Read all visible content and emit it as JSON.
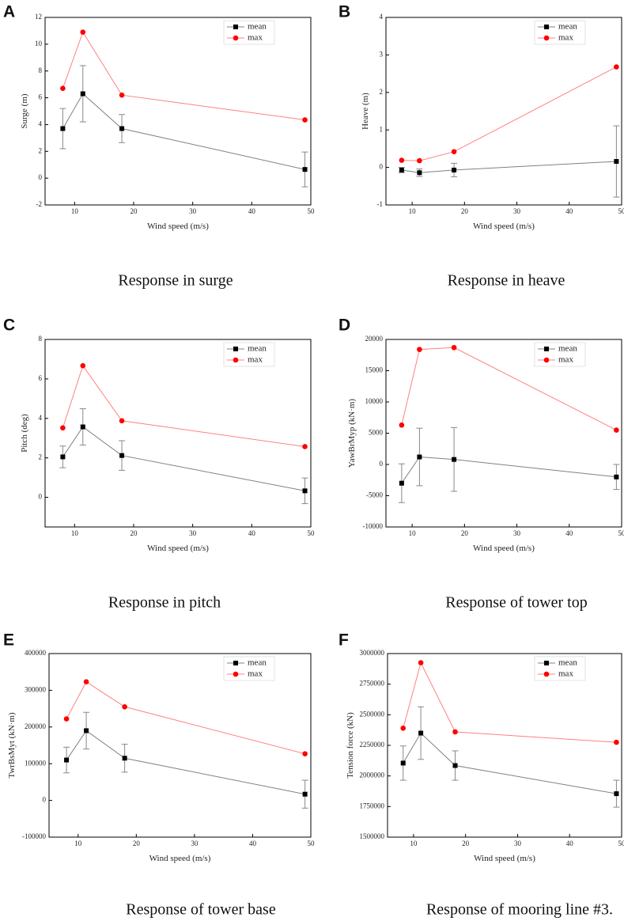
{
  "colors": {
    "mean": "#000000",
    "max": "#ff0000",
    "mean_line": "#808080",
    "max_line": "#ff8080",
    "errorbar": "#888888"
  },
  "chart_data": [
    {
      "panel": "A",
      "type": "line",
      "caption": "Response in surge",
      "xlabel": "Wind speed (m/s)",
      "ylabel": "Surge (m)",
      "xlim": [
        5,
        50
      ],
      "ylim": [
        -2,
        12
      ],
      "xticks": [
        "10",
        "20",
        "30",
        "40",
        "50"
      ],
      "yticks": [
        "-2",
        "0",
        "2",
        "4",
        "6",
        "8",
        "10",
        "12"
      ],
      "legend": {
        "position": "top-right",
        "entries": [
          "mean",
          "max"
        ]
      },
      "x": [
        8,
        11.4,
        18,
        49
      ],
      "series": [
        {
          "name": "mean",
          "values": [
            3.7,
            6.3,
            3.7,
            0.65
          ],
          "err": [
            1.5,
            2.1,
            1.05,
            1.3
          ]
        },
        {
          "name": "max",
          "values": [
            6.7,
            10.9,
            6.2,
            4.35
          ]
        }
      ]
    },
    {
      "panel": "B",
      "type": "line",
      "caption": "Response in heave",
      "xlabel": "Wind speed (m/s)",
      "ylabel": "Heave (m)",
      "xlim": [
        5,
        50
      ],
      "ylim": [
        -1,
        4
      ],
      "xticks": [
        "10",
        "20",
        "30",
        "40",
        "50"
      ],
      "yticks": [
        "-1",
        "0",
        "1",
        "2",
        "3",
        "4"
      ],
      "legend": {
        "position": "top-right",
        "entries": [
          "mean",
          "max"
        ]
      },
      "x": [
        8,
        11.4,
        18,
        49
      ],
      "series": [
        {
          "name": "mean",
          "values": [
            -0.07,
            -0.14,
            -0.07,
            0.16
          ],
          "err": [
            0.07,
            0.1,
            0.18,
            0.95
          ]
        },
        {
          "name": "max",
          "values": [
            0.19,
            0.18,
            0.42,
            2.68
          ]
        }
      ]
    },
    {
      "panel": "C",
      "type": "line",
      "caption": "Response in pitch",
      "xlabel": "Wind speed (m/s)",
      "ylabel": "Pitch (deg)",
      "xlim": [
        5,
        50
      ],
      "ylim": [
        -1.5,
        8
      ],
      "xticks": [
        "10",
        "20",
        "30",
        "40",
        "50"
      ],
      "yticks": [
        "0",
        "2",
        "4",
        "6",
        "8"
      ],
      "legend": {
        "position": "top-right",
        "entries": [
          "mean",
          "max"
        ]
      },
      "x": [
        8,
        11.4,
        18,
        49
      ],
      "series": [
        {
          "name": "mean",
          "values": [
            2.05,
            3.57,
            2.12,
            0.33
          ],
          "err": [
            0.55,
            0.92,
            0.75,
            0.65
          ]
        },
        {
          "name": "max",
          "values": [
            3.52,
            6.67,
            3.88,
            2.57
          ]
        }
      ]
    },
    {
      "panel": "D",
      "type": "line",
      "caption": "Response of tower top",
      "xlabel": "Wind speed (m/s)",
      "ylabel": "YawBrMyp (kN·m)",
      "xlim": [
        5,
        50
      ],
      "ylim": [
        -10000,
        20000
      ],
      "xticks": [
        "10",
        "20",
        "30",
        "40",
        "50"
      ],
      "yticks": [
        "-10000",
        "-5000",
        "0",
        "5000",
        "10000",
        "15000",
        "20000"
      ],
      "legend": {
        "position": "top-right",
        "entries": [
          "mean",
          "max"
        ]
      },
      "x": [
        8,
        11.4,
        18,
        49
      ],
      "series": [
        {
          "name": "mean",
          "values": [
            -3000,
            1200,
            800,
            -2000
          ],
          "err": [
            3100,
            4600,
            5100,
            2000
          ]
        },
        {
          "name": "max",
          "values": [
            6300,
            18400,
            18700,
            5500
          ]
        }
      ]
    },
    {
      "panel": "E",
      "type": "line",
      "caption": "Response of tower base",
      "xlabel": "Wind speed (m/s)",
      "ylabel": "TwrBsMyt (kN·m)",
      "xlim": [
        5,
        50
      ],
      "ylim": [
        -100000,
        400000
      ],
      "xticks": [
        "10",
        "20",
        "30",
        "40",
        "50"
      ],
      "yticks": [
        "-100000",
        "0",
        "100000",
        "200000",
        "300000",
        "400000"
      ],
      "legend": {
        "position": "top-right",
        "entries": [
          "mean",
          "max"
        ]
      },
      "x": [
        8,
        11.4,
        18,
        49
      ],
      "series": [
        {
          "name": "mean",
          "values": [
            110000,
            190000,
            115000,
            17000
          ],
          "err": [
            35000,
            50000,
            38000,
            38000
          ]
        },
        {
          "name": "max",
          "values": [
            222000,
            323000,
            255000,
            127000
          ]
        }
      ]
    },
    {
      "panel": "F",
      "type": "line",
      "caption": "Response of mooring line #3.",
      "xlabel": "Wind speed (m/s)",
      "ylabel": "Tension force (kN)",
      "xlim": [
        5,
        50
      ],
      "ylim": [
        1500000,
        3000000
      ],
      "xticks": [
        "10",
        "20",
        "30",
        "40",
        "50"
      ],
      "yticks": [
        "1500000",
        "1750000",
        "2000000",
        "2250000",
        "2500000",
        "2750000",
        "3000000"
      ],
      "legend": {
        "position": "top-right",
        "entries": [
          "mean",
          "max"
        ]
      },
      "x": [
        8,
        11.4,
        18,
        49
      ],
      "series": [
        {
          "name": "mean",
          "values": [
            2105000,
            2350000,
            2085000,
            1855000
          ],
          "err": [
            140000,
            215000,
            120000,
            110000
          ]
        },
        {
          "name": "max",
          "values": [
            2390000,
            2925000,
            2360000,
            2275000
          ]
        }
      ]
    }
  ]
}
